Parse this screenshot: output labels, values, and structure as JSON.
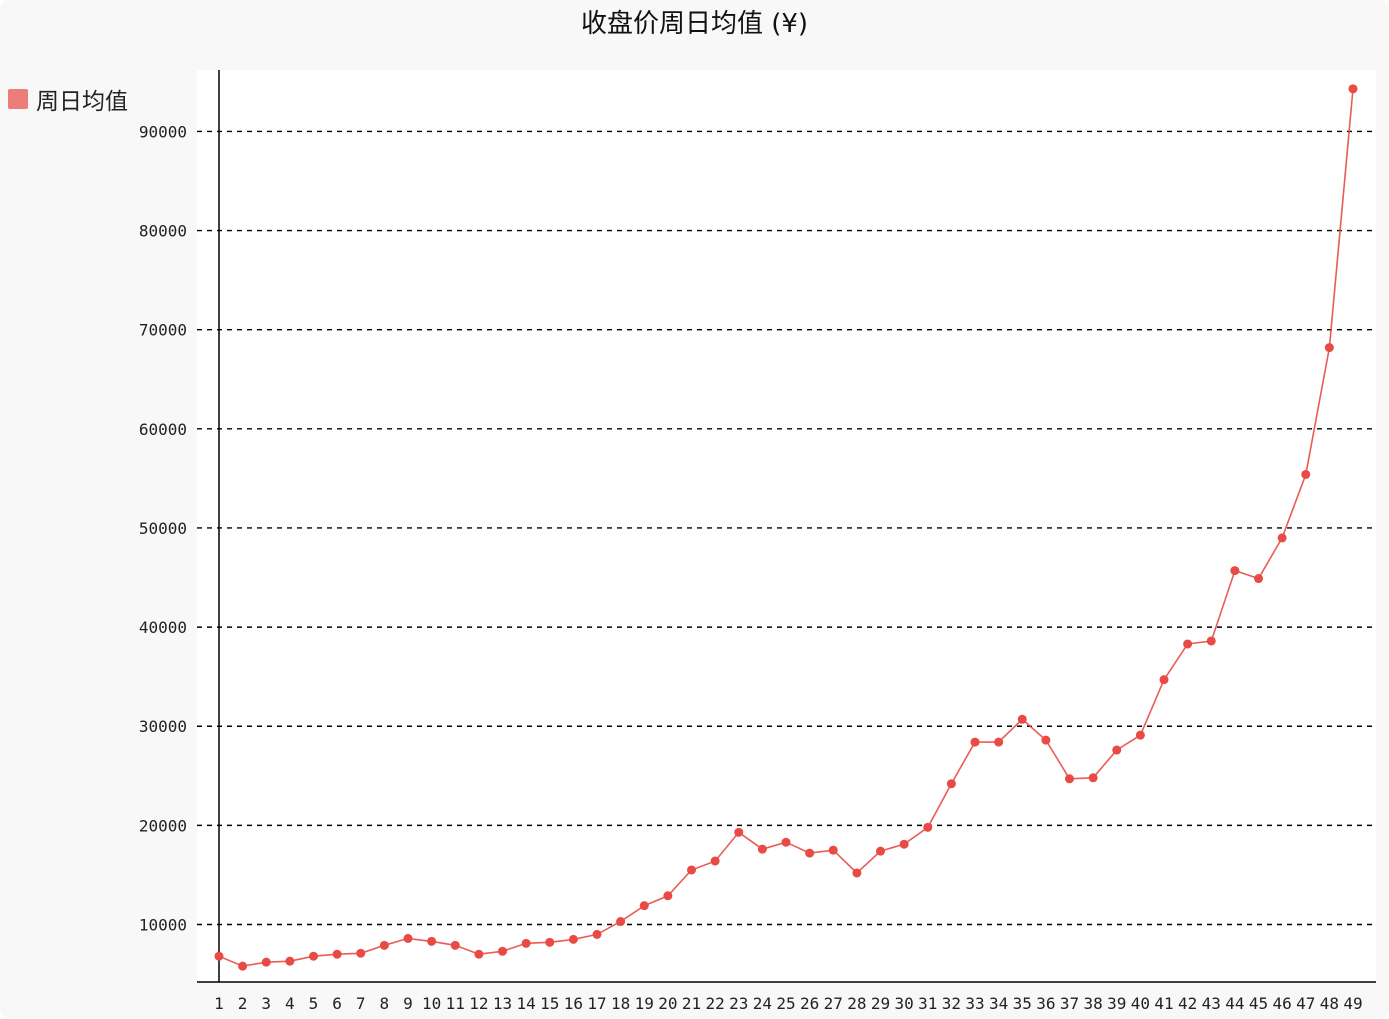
{
  "chart_data": {
    "type": "line",
    "title": "收盘价周日均值 (¥)",
    "xlabel": "",
    "ylabel": "",
    "x": [
      1,
      2,
      3,
      4,
      5,
      6,
      7,
      8,
      9,
      10,
      11,
      12,
      13,
      14,
      15,
      16,
      17,
      18,
      19,
      20,
      21,
      22,
      23,
      24,
      25,
      26,
      27,
      28,
      29,
      30,
      31,
      32,
      33,
      34,
      35,
      36,
      37,
      38,
      39,
      40,
      41,
      42,
      43,
      44,
      45,
      46,
      47,
      48,
      49
    ],
    "series": [
      {
        "name": "周日均值",
        "color": "#e84a44",
        "values": [
          6800,
          5800,
          6200,
          6300,
          6800,
          7000,
          7100,
          7900,
          8600,
          8300,
          7900,
          7000,
          7300,
          8100,
          8200,
          8500,
          9000,
          10300,
          11900,
          12900,
          15500,
          16400,
          19300,
          17600,
          18300,
          17200,
          17500,
          15200,
          17400,
          18100,
          19800,
          24200,
          28400,
          28400,
          30700,
          28600,
          24700,
          24800,
          27600,
          29100,
          34700,
          38300,
          38600,
          45700,
          44900,
          49000,
          55400,
          68200,
          94300
        ]
      }
    ],
    "yticks": [
      10000,
      20000,
      30000,
      40000,
      50000,
      60000,
      70000,
      80000,
      90000
    ],
    "ylim": [
      4200,
      96200
    ],
    "grid": true,
    "legend_position": "top-left"
  }
}
